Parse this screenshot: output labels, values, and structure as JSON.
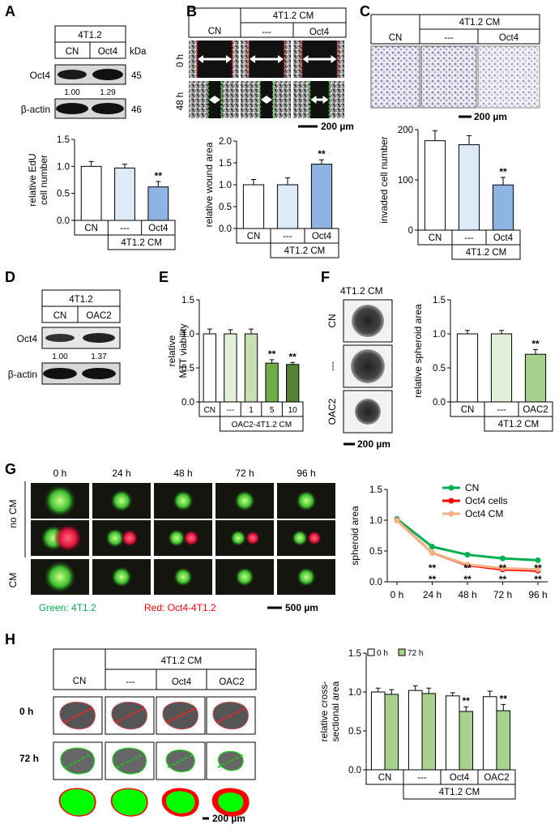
{
  "panel_letters": {
    "A": "A",
    "B": "B",
    "C": "C",
    "D": "D",
    "E": "E",
    "F": "F",
    "G": "G",
    "H": "H"
  },
  "scale_bars": {
    "B": "200 µm",
    "C": "200 µm",
    "F": "200 µm",
    "G": "500 µm",
    "H": "200 µm"
  },
  "sig_mark": "**",
  "colors": {
    "white_bar": "#ffffff",
    "light_blue": "#ddeaf7",
    "blue": "#8eb4e3",
    "light_green": "#e2efd9",
    "green1": "#c5e0b3",
    "green2": "#a9d18e",
    "green3": "#70ad47",
    "green4": "#548235",
    "cn_line": "#00b050",
    "oct4_cells_line": "#ff0000",
    "oct4_cm_line": "#f4b183",
    "blot_dark": "#1a1a1a"
  },
  "A": {
    "header": "4T1.2",
    "lanes": [
      "CN",
      "Oct4"
    ],
    "kda_label": "kDa",
    "rows": [
      {
        "label": "Oct4",
        "kda": "45"
      },
      {
        "label": "β-actin",
        "kda": "46"
      }
    ],
    "quant": [
      "1.00",
      "1.29"
    ]
  },
  "B": {
    "header": "4T1.2 CM",
    "cols": [
      "CN",
      "---",
      "Oct4"
    ],
    "rows": [
      "0 h",
      "48 h"
    ]
  },
  "C": {
    "header": "4T1.2 CM",
    "cols": [
      "CN",
      "---",
      "Oct4"
    ]
  },
  "D": {
    "header": "4T1.2",
    "lanes": [
      "CN",
      "OAC2"
    ],
    "rows": [
      {
        "label": "Oct4"
      },
      {
        "label": "β-actin"
      }
    ],
    "quant": [
      "1.00",
      "1.37"
    ]
  },
  "F": {
    "header": "4T1.2 CM",
    "rows": [
      "CN",
      "---",
      "OAC2"
    ]
  },
  "G": {
    "times": [
      "0 h",
      "24 h",
      "48 h",
      "72 h",
      "96 h"
    ],
    "rows": [
      "no CM",
      "CM"
    ],
    "legend_green": "Green: 4T1.2",
    "legend_red": "Red: Oct4-4T1.2"
  },
  "H": {
    "header": "4T1.2 CM",
    "cols": [
      "CN",
      "---",
      "Oct4",
      "OAC2"
    ],
    "rows": [
      "0 h",
      "72 h"
    ]
  },
  "chart_data": [
    {
      "id": "A",
      "type": "bar",
      "ylabel": "relative EdU cell number",
      "ylim": [
        0,
        1.5
      ],
      "yticks": [
        "0.0",
        "0.5",
        "1.0",
        "1.5"
      ],
      "categories": [
        "CN",
        "---",
        "Oct4"
      ],
      "values": [
        1.0,
        0.97,
        0.62
      ],
      "errors": [
        0.09,
        0.07,
        0.1
      ],
      "sig": [
        false,
        false,
        true
      ],
      "group_label": "4T1.2 CM"
    },
    {
      "id": "B",
      "type": "bar",
      "ylabel": "relative wound area",
      "ylim": [
        0,
        2.0
      ],
      "yticks": [
        "0.0",
        "0.5",
        "1.0",
        "1.5",
        "2.0"
      ],
      "categories": [
        "CN",
        "---",
        "Oct4"
      ],
      "values": [
        1.0,
        1.0,
        1.47
      ],
      "errors": [
        0.12,
        0.16,
        0.1
      ],
      "sig": [
        false,
        false,
        true
      ],
      "group_label": "4T1.2 CM"
    },
    {
      "id": "C",
      "type": "bar",
      "ylabel": "invaded cell number",
      "ylim": [
        0,
        200
      ],
      "yticks": [
        "0",
        "100",
        "200"
      ],
      "categories": [
        "CN",
        "---",
        "Oct4"
      ],
      "values": [
        178,
        170,
        90
      ],
      "errors": [
        20,
        18,
        15
      ],
      "sig": [
        false,
        false,
        true
      ],
      "group_label": "4T1.2 CM"
    },
    {
      "id": "E",
      "type": "bar",
      "ylabel": "relative MTT viability",
      "ylim": [
        0,
        1.5
      ],
      "yticks": [
        "0.0",
        "0.5",
        "1.0",
        "1.5"
      ],
      "categories": [
        "CN",
        "---",
        "1",
        "5",
        "10"
      ],
      "values": [
        1.0,
        1.0,
        1.0,
        0.57,
        0.55
      ],
      "errors": [
        0.07,
        0.06,
        0.07,
        0.05,
        0.03
      ],
      "sig": [
        false,
        false,
        false,
        true,
        true
      ],
      "group_label": "OAC2-4T1.2 CM"
    },
    {
      "id": "F",
      "type": "bar",
      "ylabel": "relative spheroid area",
      "ylim": [
        0,
        1.5
      ],
      "yticks": [
        "0.0",
        "0.5",
        "1.0",
        "1.5"
      ],
      "categories": [
        "CN",
        "---",
        "OAC2"
      ],
      "values": [
        1.0,
        1.0,
        0.7
      ],
      "errors": [
        0.05,
        0.05,
        0.07
      ],
      "sig": [
        false,
        false,
        true
      ],
      "group_label": "4T1.2 CM"
    },
    {
      "id": "G",
      "type": "line",
      "ylabel": "spheroid area",
      "ylim": [
        0,
        1.5
      ],
      "yticks": [
        "0.0",
        "0.5",
        "1.0",
        "1.5"
      ],
      "x": [
        "0 h",
        "24 h",
        "48 h",
        "72 h",
        "96 h"
      ],
      "series": [
        {
          "name": "CN",
          "values": [
            1.02,
            0.57,
            0.44,
            0.38,
            0.35
          ]
        },
        {
          "name": "Oct4 cells",
          "values": [
            1.0,
            0.47,
            0.27,
            0.2,
            0.18
          ]
        },
        {
          "name": "Oct4 CM",
          "values": [
            1.0,
            0.47,
            0.28,
            0.22,
            0.2
          ]
        }
      ]
    },
    {
      "id": "H",
      "type": "bar",
      "ylabel": "relative cross-sectional area",
      "ylim": [
        0,
        1.5
      ],
      "yticks": [
        "0.0",
        "0.5",
        "1.0",
        "1.5"
      ],
      "categories": [
        "CN",
        "---",
        "Oct4",
        "OAC2"
      ],
      "series": [
        {
          "name": "0 h",
          "values": [
            1.0,
            1.02,
            0.95,
            0.94
          ],
          "errors": [
            0.05,
            0.06,
            0.04,
            0.07
          ]
        },
        {
          "name": "72 h",
          "values": [
            0.97,
            0.98,
            0.75,
            0.76
          ],
          "errors": [
            0.06,
            0.07,
            0.06,
            0.08
          ]
        }
      ],
      "sig72": [
        false,
        false,
        true,
        true
      ],
      "group_label": "4T1.2 CM"
    }
  ]
}
